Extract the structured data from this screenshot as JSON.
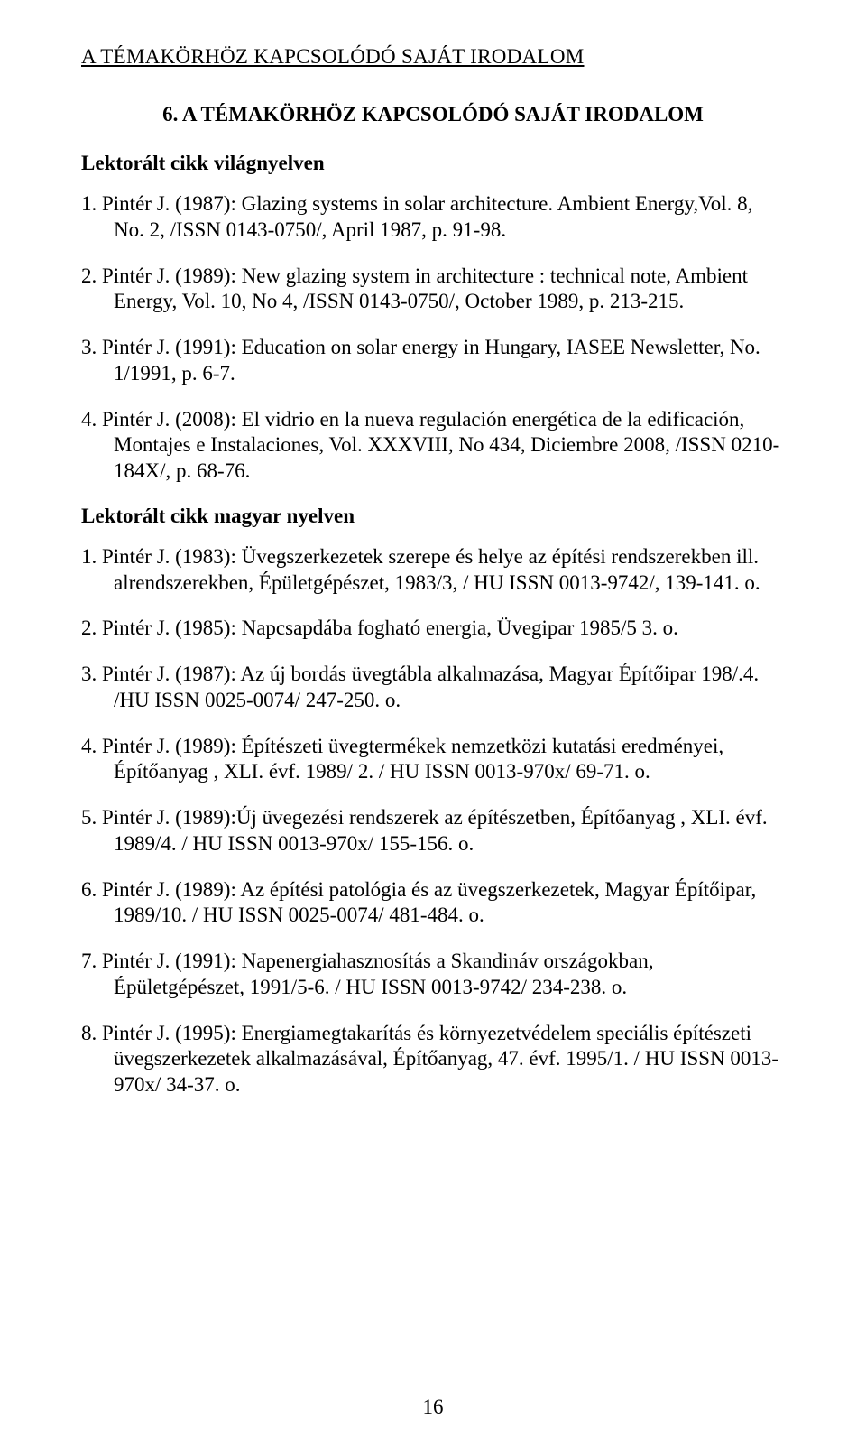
{
  "header": "A TÉMAKÖRHÖZ KAPCSOLÓDÓ SAJÁT IRODALOM",
  "chapter_title": "6. A TÉMAKÖRHÖZ KAPCSOLÓDÓ SAJÁT IRODALOM",
  "section1_heading": "Lektorált cikk világnyelven",
  "section1": {
    "ref1": "1.  Pintér J. (1987): Glazing systems in solar architecture. Ambient Energy,Vol. 8, No. 2, /ISSN 0143-0750/, April 1987, p. 91-98.",
    "ref2": "2.  Pintér J. (1989): New glazing system in architecture : technical note, Ambient Energy, Vol. 10, No 4, /ISSN 0143-0750/, October 1989, p. 213-215.",
    "ref3": "3.  Pintér J. (1991): Education on solar energy in Hungary, IASEE Newsletter, No. 1/1991, p. 6-7.",
    "ref4": "4.  Pintér J. (2008): El vidrio en la nueva regulación energética de la edificación, Montajes e Instalaciones, Vol. XXXVIII, No 434, Diciembre 2008, /ISSN 0210-184X/, p. 68-76."
  },
  "section2_heading": "Lektorált cikk magyar nyelven",
  "section2": {
    "ref1": "1.  Pintér J. (1983): Üvegszerkezetek szerepe és helye az építési rendszerekben ill. alrendszerekben, Épületgépészet, 1983/3, / HU ISSN 0013-9742/, 139-141. o.",
    "ref2": "2.  Pintér J. (1985): Napcsapdába fogható energia, Üvegipar 1985/5  3. o.",
    "ref3": "3.  Pintér J. (1987): Az új bordás üvegtábla alkalmazása, Magyar Építőipar 198/.4. /HU ISSN 0025-0074/ 247-250. o.",
    "ref4": "4.  Pintér J.  (1989): Építészeti üvegtermékek nemzetközi kutatási eredményei, Építőanyag , XLI. évf. 1989/ 2. / HU ISSN 0013-970x/  69-71. o.",
    "ref5": "5.  Pintér J.  (1989):Új üvegezési rendszerek az építészetben,  Építőanyag , XLI. évf.  1989/4. / HU ISSN 0013-970x/  155-156. o.",
    "ref6": "6.  Pintér J.  (1989): Az építési patológia és az üvegszerkezetek, Magyar Építőipar, 1989/10. /  HU ISSN 0025-0074/  481-484. o.",
    "ref7": "7.  Pintér J.  (1991): Napenergiahasznosítás a Skandináv országokban, Épületgépészet,  1991/5-6. / HU ISSN 0013-9742/  234-238. o.",
    "ref8": "8.  Pintér J. (1995): Energiamegtakarítás és környezetvédelem speciális építészeti üvegszerkezetek alkalmazásával,  Építőanyag,   47. évf. 1995/1. / HU ISSN 0013-970x/  34-37. o."
  },
  "page_number": "16"
}
